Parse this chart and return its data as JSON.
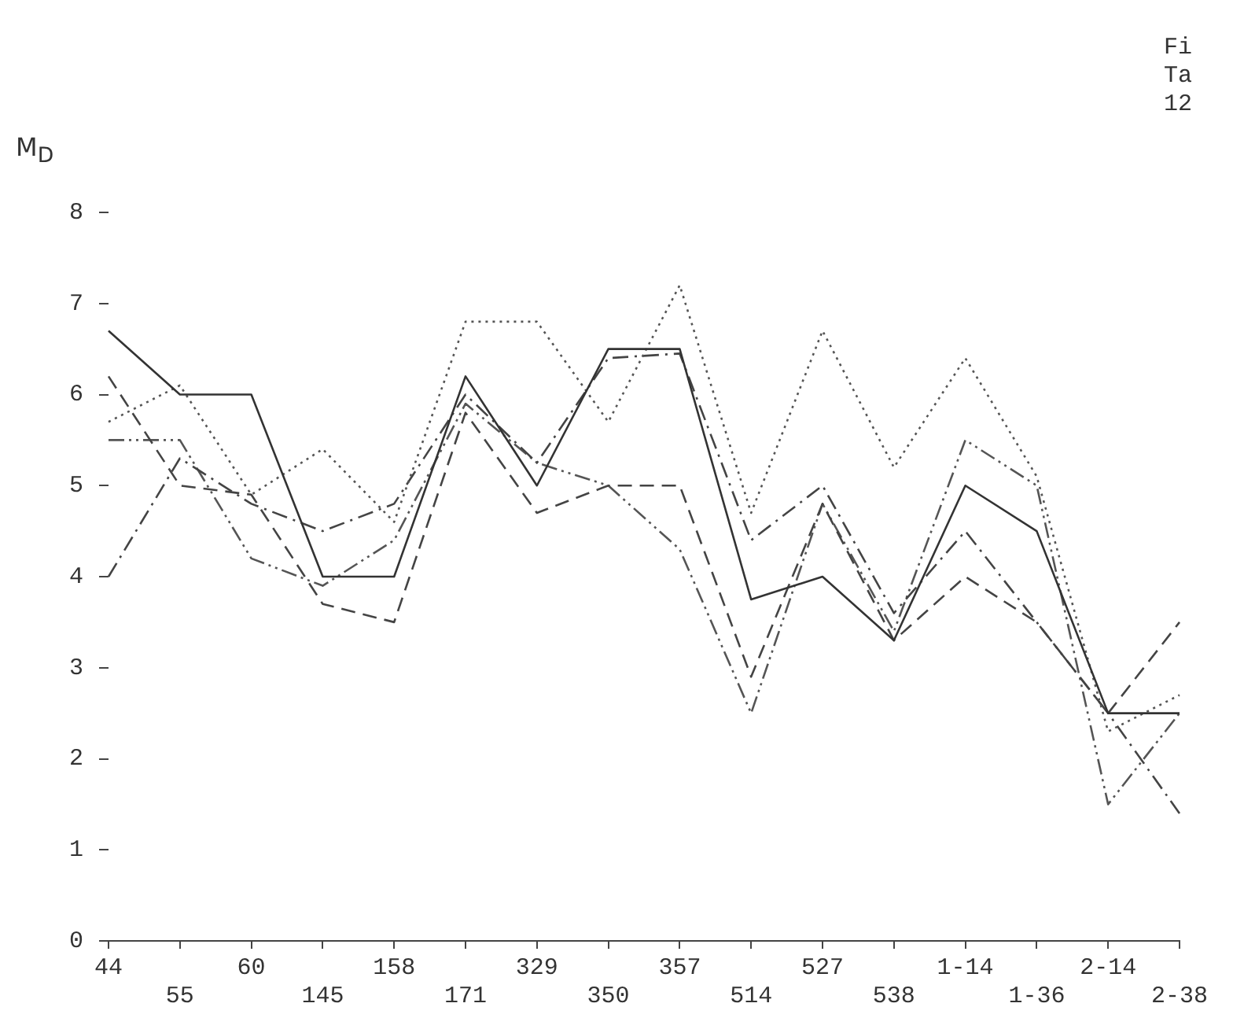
{
  "chart_data": {
    "type": "line",
    "ylabel": "M$_{D}$",
    "annotations": [
      "Fi",
      "Ta",
      "12"
    ],
    "categories": [
      "44",
      "55",
      "60",
      "145",
      "158",
      "171",
      "329",
      "350",
      "357",
      "514",
      "527",
      "538",
      "1-14",
      "1-36",
      "2-14",
      "2-38"
    ],
    "series": [
      {
        "color": "#333333",
        "line_style": "solid",
        "values": [
          6.7,
          6.0,
          6.0,
          4.0,
          4.0,
          6.2,
          5.0,
          6.5,
          6.5,
          3.75,
          4.0,
          3.3,
          5.0,
          4.5,
          2.5,
          2.5
        ]
      },
      {
        "color": "#555555",
        "line_style": "dotted",
        "values": [
          5.7,
          6.1,
          4.9,
          5.4,
          4.6,
          6.8,
          6.8,
          5.7,
          7.2,
          4.7,
          6.7,
          5.2,
          6.4,
          5.1,
          2.3,
          2.7
        ]
      },
      {
        "color": "#444444",
        "line_style": "dashed",
        "values": [
          6.2,
          5.0,
          4.9,
          3.7,
          3.5,
          5.8,
          4.7,
          5.0,
          5.0,
          2.9,
          4.8,
          3.3,
          4.0,
          3.5,
          2.5,
          3.5
        ]
      },
      {
        "color": "#444444",
        "line_style": "dashdot",
        "values": [
          4.0,
          5.3,
          4.8,
          4.5,
          4.8,
          6.0,
          5.25,
          6.4,
          6.45,
          4.4,
          5.0,
          3.6,
          4.5,
          3.5,
          2.5,
          1.4
        ]
      },
      {
        "color": "#555555",
        "line_style": "dashdotdot",
        "values": [
          5.5,
          5.5,
          4.2,
          3.9,
          4.4,
          5.9,
          5.25,
          5.0,
          4.3,
          2.5,
          4.8,
          3.4,
          5.5,
          5.0,
          1.5,
          2.5
        ]
      }
    ],
    "ylim": [
      0,
      8
    ],
    "yticks": [
      0,
      1,
      2,
      3,
      4,
      5,
      6,
      7,
      8
    ],
    "grid": false,
    "legend": false,
    "marker": "none"
  }
}
